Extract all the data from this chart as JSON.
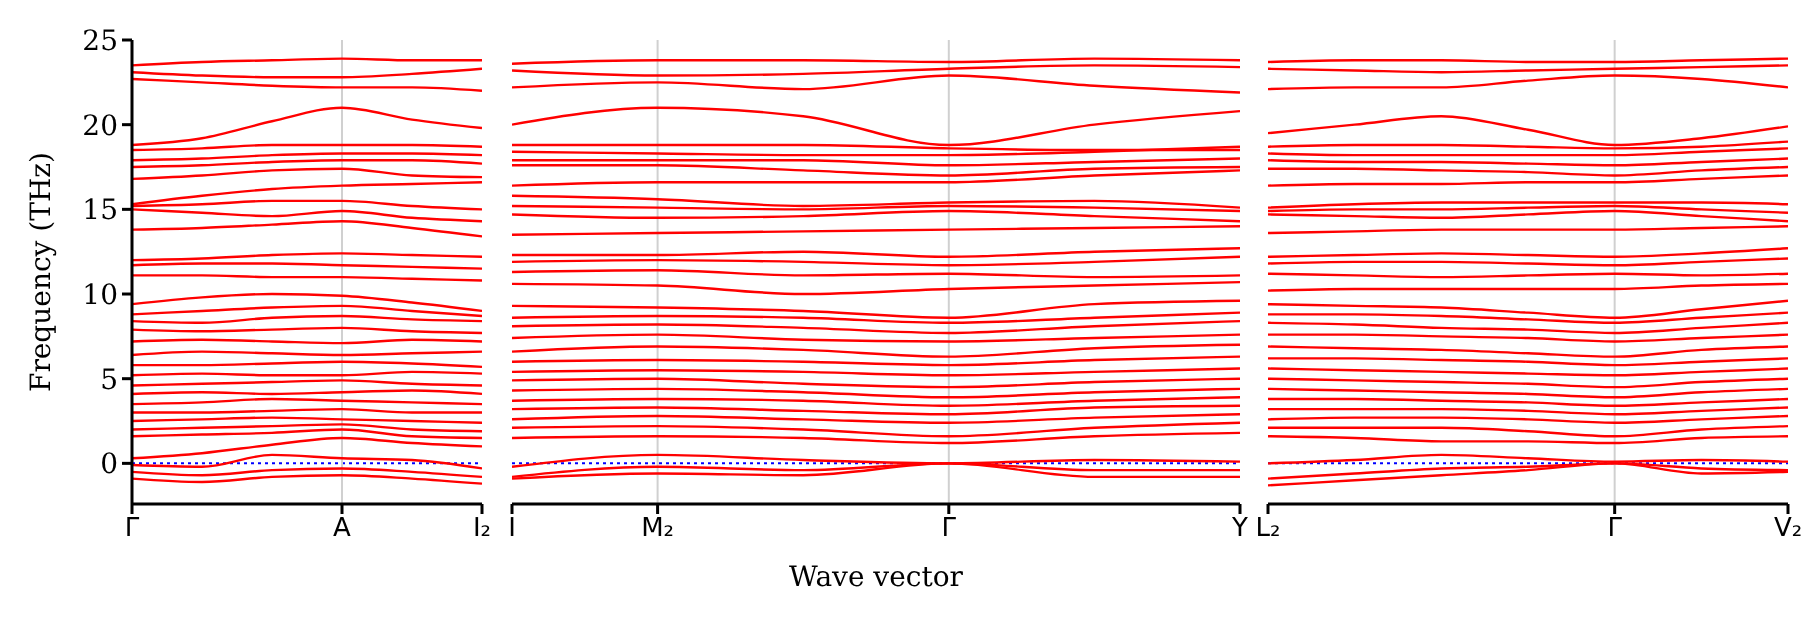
{
  "chart_data": [
    {
      "type": "line",
      "ylabel": "Frequency (THz)",
      "categories": [
        "Γ",
        null,
        null,
        "A",
        null,
        "I₂"
      ],
      "ylim": [
        -2.4,
        25
      ],
      "yticks": [
        0,
        5,
        10,
        15,
        20,
        25
      ],
      "marker": "none",
      "line_style": "solid",
      "ref_lines": [
        {
          "axis": "y",
          "value": 0,
          "color": "#0000ff",
          "line_style": "dotted"
        },
        {
          "axis": "x",
          "value": "A",
          "color": "#d0d0d0",
          "line_style": "solid"
        }
      ],
      "series": [
        {
          "color": "#ff0000",
          "values": [
            23.5,
            23.7,
            23.8,
            23.9,
            23.8,
            23.8
          ]
        },
        {
          "color": "#ff0000",
          "values": [
            23.1,
            22.9,
            22.8,
            22.8,
            23.0,
            23.3
          ]
        },
        {
          "color": "#ff0000",
          "values": [
            22.7,
            22.5,
            22.3,
            22.2,
            22.2,
            22.0
          ]
        },
        {
          "color": "#ff0000",
          "values": [
            18.8,
            19.2,
            20.2,
            21.0,
            20.3,
            19.8
          ]
        },
        {
          "color": "#ff0000",
          "values": [
            18.5,
            18.6,
            18.8,
            18.8,
            18.8,
            18.7
          ]
        },
        {
          "color": "#ff0000",
          "values": [
            17.9,
            18.0,
            18.2,
            18.3,
            18.3,
            18.2
          ]
        },
        {
          "color": "#ff0000",
          "values": [
            17.5,
            17.6,
            17.8,
            17.9,
            17.9,
            17.7
          ]
        },
        {
          "color": "#ff0000",
          "values": [
            16.8,
            17.0,
            17.3,
            17.4,
            17.0,
            16.9
          ]
        },
        {
          "color": "#ff0000",
          "values": [
            15.3,
            15.8,
            16.2,
            16.4,
            16.5,
            16.6
          ]
        },
        {
          "color": "#ff0000",
          "values": [
            15.2,
            15.3,
            15.5,
            15.5,
            15.2,
            15.0
          ]
        },
        {
          "color": "#ff0000",
          "values": [
            15.0,
            14.8,
            14.6,
            14.9,
            14.5,
            14.3
          ]
        },
        {
          "color": "#ff0000",
          "values": [
            13.8,
            13.9,
            14.1,
            14.3,
            13.9,
            13.4
          ]
        },
        {
          "color": "#ff0000",
          "values": [
            12.0,
            12.1,
            12.3,
            12.4,
            12.3,
            12.2
          ]
        },
        {
          "color": "#ff0000",
          "values": [
            11.7,
            11.8,
            11.8,
            11.7,
            11.6,
            11.5
          ]
        },
        {
          "color": "#ff0000",
          "values": [
            11.1,
            11.1,
            11.0,
            11.0,
            10.9,
            10.8
          ]
        },
        {
          "color": "#ff0000",
          "values": [
            9.4,
            9.8,
            10.0,
            9.9,
            9.5,
            9.0
          ]
        },
        {
          "color": "#ff0000",
          "values": [
            8.8,
            9.0,
            9.2,
            9.3,
            9.0,
            8.7
          ]
        },
        {
          "color": "#ff0000",
          "values": [
            8.4,
            8.3,
            8.6,
            8.7,
            8.5,
            8.4
          ]
        },
        {
          "color": "#ff0000",
          "values": [
            7.9,
            7.8,
            7.9,
            8.0,
            7.8,
            7.7
          ]
        },
        {
          "color": "#ff0000",
          "values": [
            7.2,
            7.3,
            7.2,
            7.1,
            7.3,
            7.2
          ]
        },
        {
          "color": "#ff0000",
          "values": [
            6.4,
            6.6,
            6.5,
            6.4,
            6.5,
            6.6
          ]
        },
        {
          "color": "#ff0000",
          "values": [
            5.8,
            5.8,
            5.9,
            6.0,
            5.9,
            5.7
          ]
        },
        {
          "color": "#ff0000",
          "values": [
            5.2,
            5.3,
            5.2,
            5.2,
            5.4,
            5.3
          ]
        },
        {
          "color": "#ff0000",
          "values": [
            4.6,
            4.7,
            4.8,
            4.9,
            4.7,
            4.6
          ]
        },
        {
          "color": "#ff0000",
          "values": [
            4.1,
            4.2,
            4.1,
            4.2,
            4.3,
            4.1
          ]
        },
        {
          "color": "#ff0000",
          "values": [
            3.5,
            3.6,
            3.8,
            3.7,
            3.6,
            3.5
          ]
        },
        {
          "color": "#ff0000",
          "values": [
            3.0,
            3.0,
            3.1,
            3.2,
            3.0,
            3.0
          ]
        },
        {
          "color": "#ff0000",
          "values": [
            2.5,
            2.6,
            2.7,
            2.6,
            2.5,
            2.4
          ]
        },
        {
          "color": "#ff0000",
          "values": [
            2.0,
            2.1,
            2.2,
            2.3,
            2.0,
            1.9
          ]
        },
        {
          "color": "#ff0000",
          "values": [
            1.6,
            1.7,
            1.8,
            2.0,
            1.6,
            1.5
          ]
        },
        {
          "color": "#ff0000",
          "values": [
            0.3,
            0.6,
            1.1,
            1.5,
            1.2,
            1.0
          ]
        },
        {
          "color": "#ff0000",
          "values": [
            -0.1,
            -0.2,
            0.5,
            0.3,
            0.2,
            -0.3
          ]
        },
        {
          "color": "#ff0000",
          "values": [
            -0.5,
            -0.7,
            -0.4,
            -0.3,
            -0.5,
            -0.8
          ]
        },
        {
          "color": "#ff0000",
          "values": [
            -0.9,
            -1.1,
            -0.8,
            -0.7,
            -0.9,
            -1.2
          ]
        }
      ]
    },
    {
      "type": "line",
      "xlabel": "Wave vector",
      "categories": [
        "I",
        "M₂",
        null,
        "Γ",
        null,
        "Y"
      ],
      "ylim": [
        -2.4,
        25
      ],
      "yticks": [
        0,
        5,
        10,
        15,
        20,
        25
      ],
      "tick_labels": "x",
      "marker": "none",
      "line_style": "solid",
      "ref_lines": [
        {
          "axis": "y",
          "value": 0,
          "color": "#0000ff",
          "line_style": "dotted"
        },
        {
          "axis": "x",
          "value": "M₂",
          "color": "#d0d0d0",
          "line_style": "solid"
        },
        {
          "axis": "x",
          "value": "Γ",
          "color": "#d0d0d0",
          "line_style": "solid"
        }
      ],
      "series": [
        {
          "color": "#ff0000",
          "values": [
            23.6,
            23.8,
            23.8,
            23.7,
            23.9,
            23.8
          ]
        },
        {
          "color": "#ff0000",
          "values": [
            23.2,
            22.9,
            23.0,
            23.3,
            23.5,
            23.4
          ]
        },
        {
          "color": "#ff0000",
          "values": [
            22.2,
            22.5,
            22.1,
            22.9,
            22.3,
            21.9
          ]
        },
        {
          "color": "#ff0000",
          "values": [
            20.0,
            21.0,
            20.5,
            18.8,
            20.0,
            20.8
          ]
        },
        {
          "color": "#ff0000",
          "values": [
            18.8,
            18.8,
            18.8,
            18.6,
            18.5,
            18.5
          ]
        },
        {
          "color": "#ff0000",
          "values": [
            18.4,
            18.3,
            18.2,
            18.2,
            18.4,
            18.7
          ]
        },
        {
          "color": "#ff0000",
          "values": [
            17.9,
            17.9,
            17.9,
            17.6,
            17.8,
            18.0
          ]
        },
        {
          "color": "#ff0000",
          "values": [
            17.6,
            17.6,
            17.3,
            17.0,
            17.4,
            17.5
          ]
        },
        {
          "color": "#ff0000",
          "values": [
            16.4,
            16.6,
            16.6,
            16.6,
            17.0,
            17.3
          ]
        },
        {
          "color": "#ff0000",
          "values": [
            15.8,
            15.6,
            15.2,
            15.4,
            15.5,
            15.1
          ]
        },
        {
          "color": "#ff0000",
          "values": [
            15.2,
            15.1,
            15.0,
            15.2,
            15.1,
            14.9
          ]
        },
        {
          "color": "#ff0000",
          "values": [
            14.7,
            14.5,
            14.6,
            14.9,
            14.6,
            14.3
          ]
        },
        {
          "color": "#ff0000",
          "values": [
            13.5,
            13.6,
            13.7,
            13.8,
            13.9,
            14.0
          ]
        },
        {
          "color": "#ff0000",
          "values": [
            12.3,
            12.3,
            12.5,
            12.2,
            12.5,
            12.7
          ]
        },
        {
          "color": "#ff0000",
          "values": [
            11.9,
            12.0,
            11.9,
            11.7,
            11.9,
            12.2
          ]
        },
        {
          "color": "#ff0000",
          "values": [
            11.3,
            11.4,
            11.1,
            11.2,
            11.0,
            11.1
          ]
        },
        {
          "color": "#ff0000",
          "values": [
            10.6,
            10.5,
            10.0,
            10.3,
            10.5,
            10.7
          ]
        },
        {
          "color": "#ff0000",
          "values": [
            9.3,
            9.2,
            9.0,
            8.6,
            9.4,
            9.6
          ]
        },
        {
          "color": "#ff0000",
          "values": [
            8.6,
            8.7,
            8.6,
            8.3,
            8.6,
            8.9
          ]
        },
        {
          "color": "#ff0000",
          "values": [
            8.1,
            8.2,
            8.0,
            7.7,
            8.1,
            8.4
          ]
        },
        {
          "color": "#ff0000",
          "values": [
            7.4,
            7.6,
            7.3,
            7.2,
            7.4,
            7.6
          ]
        },
        {
          "color": "#ff0000",
          "values": [
            6.6,
            6.9,
            6.7,
            6.3,
            6.8,
            7.0
          ]
        },
        {
          "color": "#ff0000",
          "values": [
            6.0,
            6.1,
            6.0,
            5.8,
            6.1,
            6.3
          ]
        },
        {
          "color": "#ff0000",
          "values": [
            5.4,
            5.5,
            5.4,
            5.2,
            5.4,
            5.6
          ]
        },
        {
          "color": "#ff0000",
          "values": [
            4.9,
            5.0,
            4.7,
            4.5,
            4.8,
            5.0
          ]
        },
        {
          "color": "#ff0000",
          "values": [
            4.3,
            4.4,
            4.2,
            3.9,
            4.2,
            4.4
          ]
        },
        {
          "color": "#ff0000",
          "values": [
            3.7,
            3.8,
            3.7,
            3.4,
            3.7,
            3.9
          ]
        },
        {
          "color": "#ff0000",
          "values": [
            3.2,
            3.3,
            3.1,
            2.9,
            3.3,
            3.4
          ]
        },
        {
          "color": "#ff0000",
          "values": [
            2.6,
            2.8,
            2.6,
            2.4,
            2.7,
            2.9
          ]
        },
        {
          "color": "#ff0000",
          "values": [
            2.1,
            2.2,
            2.0,
            1.6,
            2.1,
            2.4
          ]
        },
        {
          "color": "#ff0000",
          "values": [
            1.5,
            1.6,
            1.5,
            1.2,
            1.6,
            1.8
          ]
        },
        {
          "color": "#ff0000",
          "values": [
            -0.2,
            0.5,
            0.2,
            0.0,
            0.2,
            0.1
          ]
        },
        {
          "color": "#ff0000",
          "values": [
            -0.8,
            -0.2,
            -0.4,
            0.0,
            -0.4,
            -0.4
          ]
        },
        {
          "color": "#ff0000",
          "values": [
            -0.9,
            -0.6,
            -0.7,
            0.0,
            -0.8,
            -0.8
          ]
        }
      ]
    },
    {
      "type": "line",
      "categories": [
        "L₂",
        null,
        null,
        null,
        "Γ",
        null,
        "V₂"
      ],
      "ylim": [
        -2.4,
        25
      ],
      "yticks": [
        0,
        5,
        10,
        15,
        20,
        25
      ],
      "tick_labels": "x",
      "marker": "none",
      "line_style": "solid",
      "ref_lines": [
        {
          "axis": "y",
          "value": 0,
          "color": "#0000ff",
          "line_style": "dotted"
        },
        {
          "axis": "x",
          "value": "Γ",
          "color": "#d0d0d0",
          "line_style": "solid"
        }
      ],
      "series": [
        {
          "color": "#ff0000",
          "values": [
            23.7,
            23.8,
            23.8,
            23.7,
            23.7,
            23.8,
            23.9
          ]
        },
        {
          "color": "#ff0000",
          "values": [
            23.3,
            23.2,
            23.1,
            23.2,
            23.3,
            23.4,
            23.5
          ]
        },
        {
          "color": "#ff0000",
          "values": [
            22.1,
            22.2,
            22.2,
            22.6,
            22.9,
            22.7,
            22.2
          ]
        },
        {
          "color": "#ff0000",
          "values": [
            19.5,
            20.0,
            20.5,
            19.7,
            18.8,
            19.2,
            19.9
          ]
        },
        {
          "color": "#ff0000",
          "values": [
            18.7,
            18.8,
            18.8,
            18.7,
            18.6,
            18.7,
            19.0
          ]
        },
        {
          "color": "#ff0000",
          "values": [
            18.3,
            18.2,
            18.2,
            18.2,
            18.2,
            18.4,
            18.6
          ]
        },
        {
          "color": "#ff0000",
          "values": [
            17.9,
            17.8,
            17.8,
            17.7,
            17.6,
            17.8,
            18.0
          ]
        },
        {
          "color": "#ff0000",
          "values": [
            17.4,
            17.4,
            17.3,
            17.2,
            17.0,
            17.3,
            17.5
          ]
        },
        {
          "color": "#ff0000",
          "values": [
            16.4,
            16.5,
            16.5,
            16.6,
            16.6,
            16.8,
            17.0
          ]
        },
        {
          "color": "#ff0000",
          "values": [
            15.1,
            15.3,
            15.4,
            15.4,
            15.4,
            15.4,
            15.3
          ]
        },
        {
          "color": "#ff0000",
          "values": [
            14.9,
            15.0,
            15.0,
            15.1,
            15.2,
            15.0,
            14.8
          ]
        },
        {
          "color": "#ff0000",
          "values": [
            14.7,
            14.6,
            14.5,
            14.7,
            14.9,
            14.6,
            14.3
          ]
        },
        {
          "color": "#ff0000",
          "values": [
            13.6,
            13.7,
            13.8,
            13.8,
            13.8,
            13.9,
            14.0
          ]
        },
        {
          "color": "#ff0000",
          "values": [
            12.2,
            12.3,
            12.4,
            12.3,
            12.2,
            12.4,
            12.7
          ]
        },
        {
          "color": "#ff0000",
          "values": [
            11.8,
            11.9,
            11.9,
            11.8,
            11.7,
            11.9,
            12.1
          ]
        },
        {
          "color": "#ff0000",
          "values": [
            11.2,
            11.1,
            11.0,
            11.1,
            11.2,
            11.1,
            11.2
          ]
        },
        {
          "color": "#ff0000",
          "values": [
            10.2,
            10.3,
            10.3,
            10.3,
            10.3,
            10.5,
            10.6
          ]
        },
        {
          "color": "#ff0000",
          "values": [
            9.4,
            9.3,
            9.2,
            8.9,
            8.6,
            9.1,
            9.6
          ]
        },
        {
          "color": "#ff0000",
          "values": [
            8.8,
            8.8,
            8.7,
            8.5,
            8.3,
            8.6,
            8.9
          ]
        },
        {
          "color": "#ff0000",
          "values": [
            8.3,
            8.2,
            8.0,
            7.9,
            7.7,
            8.0,
            8.3
          ]
        },
        {
          "color": "#ff0000",
          "values": [
            7.6,
            7.6,
            7.5,
            7.4,
            7.2,
            7.4,
            7.6
          ]
        },
        {
          "color": "#ff0000",
          "values": [
            6.9,
            6.8,
            6.7,
            6.5,
            6.3,
            6.7,
            6.9
          ]
        },
        {
          "color": "#ff0000",
          "values": [
            6.2,
            6.2,
            6.1,
            6.0,
            5.8,
            6.0,
            6.2
          ]
        },
        {
          "color": "#ff0000",
          "values": [
            5.6,
            5.5,
            5.4,
            5.3,
            5.2,
            5.4,
            5.6
          ]
        },
        {
          "color": "#ff0000",
          "values": [
            5.0,
            4.9,
            4.8,
            4.7,
            4.5,
            4.8,
            5.0
          ]
        },
        {
          "color": "#ff0000",
          "values": [
            4.4,
            4.3,
            4.2,
            4.1,
            3.9,
            4.2,
            4.4
          ]
        },
        {
          "color": "#ff0000",
          "values": [
            3.8,
            3.8,
            3.7,
            3.6,
            3.4,
            3.6,
            3.8
          ]
        },
        {
          "color": "#ff0000",
          "values": [
            3.2,
            3.2,
            3.2,
            3.1,
            2.9,
            3.1,
            3.3
          ]
        },
        {
          "color": "#ff0000",
          "values": [
            2.6,
            2.7,
            2.7,
            2.6,
            2.4,
            2.6,
            2.8
          ]
        },
        {
          "color": "#ff0000",
          "values": [
            2.1,
            2.1,
            2.1,
            1.9,
            1.6,
            2.0,
            2.2
          ]
        },
        {
          "color": "#ff0000",
          "values": [
            1.6,
            1.5,
            1.3,
            1.3,
            1.2,
            1.5,
            1.6
          ]
        },
        {
          "color": "#ff0000",
          "values": [
            0.0,
            0.2,
            0.5,
            0.3,
            0.1,
            0.2,
            0.1
          ]
        },
        {
          "color": "#ff0000",
          "values": [
            -0.9,
            -0.6,
            -0.3,
            -0.2,
            0.0,
            -0.3,
            -0.4
          ]
        },
        {
          "color": "#ff0000",
          "values": [
            -1.3,
            -1.0,
            -0.7,
            -0.4,
            0.0,
            -0.6,
            -0.5
          ]
        }
      ]
    }
  ]
}
